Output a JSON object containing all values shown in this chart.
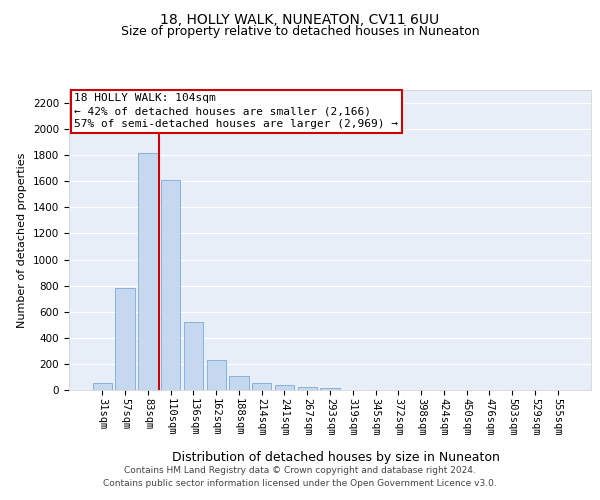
{
  "title": "18, HOLLY WALK, NUNEATON, CV11 6UU",
  "subtitle": "Size of property relative to detached houses in Nuneaton",
  "xlabel": "Distribution of detached houses by size in Nuneaton",
  "ylabel": "Number of detached properties",
  "categories": [
    "31sqm",
    "57sqm",
    "83sqm",
    "110sqm",
    "136sqm",
    "162sqm",
    "188sqm",
    "214sqm",
    "241sqm",
    "267sqm",
    "293sqm",
    "319sqm",
    "345sqm",
    "372sqm",
    "398sqm",
    "424sqm",
    "450sqm",
    "476sqm",
    "503sqm",
    "529sqm",
    "555sqm"
  ],
  "values": [
    50,
    780,
    1820,
    1610,
    525,
    230,
    105,
    55,
    40,
    20,
    15,
    0,
    0,
    0,
    0,
    0,
    0,
    0,
    0,
    0,
    0
  ],
  "bar_color": "#c5d8ef",
  "bar_edge_color": "#7bacd4",
  "vline_color": "#cc0000",
  "annotation_text": "18 HOLLY WALK: 104sqm\n← 42% of detached houses are smaller (2,166)\n57% of semi-detached houses are larger (2,969) →",
  "annotation_box_color": "#ffffff",
  "annotation_box_edge_color": "#cc0000",
  "ylim": [
    0,
    2300
  ],
  "yticks": [
    0,
    200,
    400,
    600,
    800,
    1000,
    1200,
    1400,
    1600,
    1800,
    2000,
    2200
  ],
  "background_color": "#e8eef8",
  "grid_color": "#ffffff",
  "footer_line1": "Contains HM Land Registry data © Crown copyright and database right 2024.",
  "footer_line2": "Contains public sector information licensed under the Open Government Licence v3.0.",
  "title_fontsize": 10,
  "subtitle_fontsize": 9,
  "xlabel_fontsize": 9,
  "ylabel_fontsize": 8,
  "tick_fontsize": 7.5,
  "annotation_fontsize": 8,
  "footer_fontsize": 6.5
}
